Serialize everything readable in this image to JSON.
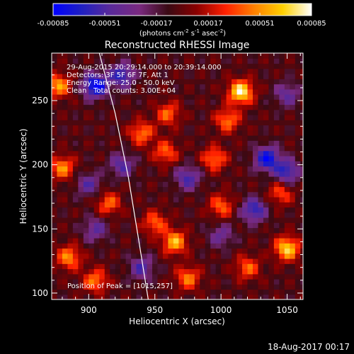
{
  "colorbar": {
    "tick_labels": [
      "-0.00085",
      "-0.00051",
      "-0.00017",
      "0.00017",
      "0.00051",
      "0.00085"
    ],
    "range": [
      -0.00085,
      0.00085
    ],
    "unit_parts": [
      "(photons cm",
      "-2",
      " s",
      "-1",
      " asec",
      "-2",
      ")"
    ],
    "colors": [
      "#0000ff",
      "#2020c0",
      "#5a2a9a",
      "#7a2a80",
      "#3a0a14",
      "#8a0000",
      "#ff2000",
      "#ff8000",
      "#ffd000",
      "#ffffff"
    ]
  },
  "chart_data": {
    "type": "heatmap",
    "title": "Reconstructed RHESSI Image",
    "xlabel": "Heliocentric X (arcsec)",
    "ylabel": "Heliocentric Y (arcsec)",
    "xlim": [
      872,
      1062
    ],
    "ylim": [
      95,
      287
    ],
    "x_ticks": [
      900,
      950,
      1000,
      1050
    ],
    "y_ticks": [
      100,
      150,
      200,
      250
    ],
    "grid": false,
    "limb_curve": [
      [
        908,
        287
      ],
      [
        920,
        240
      ],
      [
        930,
        190
      ],
      [
        938,
        140
      ],
      [
        945,
        95
      ]
    ],
    "hot_spots": [
      {
        "x": 1015,
        "y": 257,
        "value": 0.00085
      },
      {
        "x": 877,
        "y": 262,
        "value": 0.0006
      },
      {
        "x": 1005,
        "y": 235,
        "value": 0.0005
      },
      {
        "x": 960,
        "y": 240,
        "value": 0.00045
      },
      {
        "x": 940,
        "y": 225,
        "value": 0.0005
      },
      {
        "x": 880,
        "y": 198,
        "value": 0.00055
      },
      {
        "x": 958,
        "y": 210,
        "value": 0.00045
      },
      {
        "x": 995,
        "y": 205,
        "value": 0.0005
      },
      {
        "x": 915,
        "y": 170,
        "value": 0.00045
      },
      {
        "x": 950,
        "y": 155,
        "value": 0.00045
      },
      {
        "x": 965,
        "y": 140,
        "value": 0.00065
      },
      {
        "x": 1000,
        "y": 168,
        "value": 0.00045
      },
      {
        "x": 1050,
        "y": 135,
        "value": 0.00075
      },
      {
        "x": 885,
        "y": 128,
        "value": 0.00055
      },
      {
        "x": 905,
        "y": 110,
        "value": 0.0005
      },
      {
        "x": 1020,
        "y": 120,
        "value": 0.00045
      },
      {
        "x": 975,
        "y": 112,
        "value": 0.0005
      },
      {
        "x": 1045,
        "y": 178,
        "value": 0.0004
      }
    ],
    "cold_spots": [
      {
        "x": 905,
        "y": 262,
        "value": -0.00085
      },
      {
        "x": 925,
        "y": 270,
        "value": -0.0006
      },
      {
        "x": 1035,
        "y": 205,
        "value": -0.00075
      },
      {
        "x": 1050,
        "y": 195,
        "value": -0.0006
      },
      {
        "x": 975,
        "y": 190,
        "value": -0.0005
      },
      {
        "x": 925,
        "y": 200,
        "value": -0.00045
      },
      {
        "x": 1025,
        "y": 165,
        "value": -0.0006
      },
      {
        "x": 905,
        "y": 150,
        "value": -0.0004
      },
      {
        "x": 1000,
        "y": 145,
        "value": -0.00035
      },
      {
        "x": 900,
        "y": 185,
        "value": -0.0004
      },
      {
        "x": 940,
        "y": 120,
        "value": -0.00045
      },
      {
        "x": 1050,
        "y": 255,
        "value": -0.0004
      }
    ]
  },
  "annotations": {
    "time_range": "29-Aug-2015 20:29:14.000 to 20:39:14.000",
    "detectors": "Detectors: 3F 5F 6F 7F, Att 1",
    "energy_range": "Energy Range: 25.0 - 50.0 keV",
    "clean_label": "Clean",
    "total_counts": "Total counts: 3.00E+04",
    "peak_position": "Position of Peak = [1015,257]"
  },
  "footer": {
    "timestamp": "18-Aug-2017 00:17"
  }
}
